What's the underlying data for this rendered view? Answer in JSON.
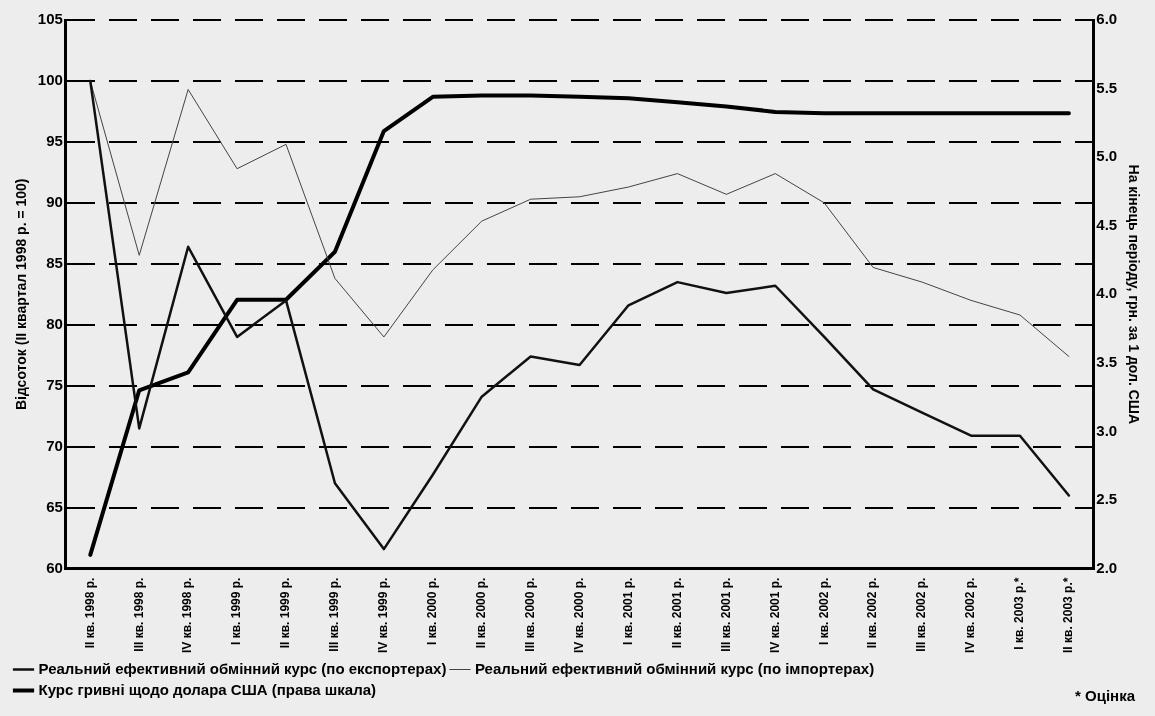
{
  "chart_data": {
    "type": "line",
    "categories": [
      "II кв. 1998 р.",
      "III кв. 1998 р.",
      "IV кв. 1998 р.",
      "I кв. 1999 р.",
      "II кв. 1999 р.",
      "III кв. 1999 р.",
      "IV кв. 1999 р.",
      "I кв. 2000 р.",
      "II кв. 2000 р.",
      "III кв. 2000 р.",
      "IV кв. 2000 р.",
      "I кв. 2001 р.",
      "II кв. 2001 р.",
      "III кв. 2001 р.",
      "IV кв. 2001 р.",
      "I кв. 2002 р.",
      "II кв. 2002 р.",
      "III кв. 2002 р.",
      "IV кв. 2002 р.",
      "I кв. 2003 р.*",
      "II кв. 2003 р.*"
    ],
    "series": [
      {
        "name": "Реальний ефективний обмінний курс (по експортерах)",
        "color": "#111111",
        "values": [
          100,
          71.5,
          86.4,
          79,
          82,
          67,
          61.6,
          67.7,
          74.1,
          77.4,
          76.7,
          81.6,
          83.5,
          82.6,
          83.2,
          79,
          74.7,
          72.8,
          70.9,
          70.9,
          66
        ]
      },
      {
        "name": "Реальний ефективний обмінний курс (по імпортерах)",
        "color": "#444444",
        "values": [
          100,
          85.7,
          99.3,
          92.8,
          94.8,
          83.8,
          79,
          84.5,
          88.5,
          90.3,
          90.5,
          91.3,
          92.4,
          90.7,
          92.4,
          90,
          84.7,
          83.5,
          82,
          80.8,
          77.4
        ]
      },
      {
        "name": "Курс гривні щодо долара США (права шкала)",
        "color": "#000000",
        "axis": "y2",
        "values": [
          2.1,
          3.3,
          3.43,
          3.96,
          3.96,
          4.31,
          5.19,
          5.44,
          5.45,
          5.45,
          5.44,
          5.43,
          5.4,
          5.37,
          5.33,
          5.32,
          5.32,
          5.32,
          5.32,
          5.32,
          5.32
        ]
      }
    ],
    "ylabel": "Відсоток (II квартал 1998 р. = 100)",
    "y2label": "На кінець періоду, грн. за 1 дол. США",
    "ylim": [
      60,
      105
    ],
    "yticks": [
      60,
      65,
      70,
      75,
      80,
      85,
      90,
      95,
      100,
      105
    ],
    "y2lim": [
      2.0,
      6.0
    ],
    "y2ticks": [
      {
        "value": 2,
        "label": "2.0"
      },
      2.5,
      {
        "value": 3,
        "label": "3.0"
      },
      3.5,
      {
        "value": 4,
        "label": "4.0"
      },
      4.5,
      {
        "value": 5,
        "label": "5.0"
      },
      5.5,
      {
        "value": 6,
        "label": "6.0"
      }
    ],
    "grid": "y",
    "legend": "bottom left",
    "marker": "none",
    "line_style": "solid",
    "annotations": [
      "* Оцінка"
    ]
  }
}
